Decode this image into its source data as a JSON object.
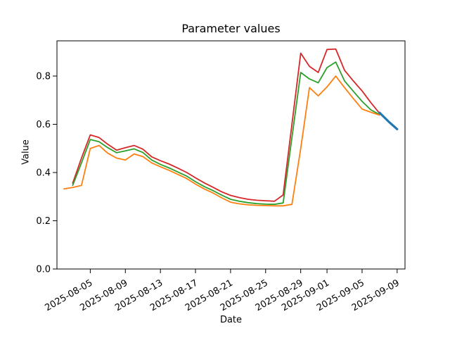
{
  "figure": {
    "background": "#ffffff",
    "text_color": "#000000"
  },
  "chart_data": {
    "type": "line",
    "title": "Parameter values",
    "xlabel": "Date",
    "ylabel": "Value",
    "grid": false,
    "legend": "none",
    "ylim": [
      0,
      0.946
    ],
    "y_ticks": [
      0.0,
      0.2,
      0.4,
      0.6,
      0.8
    ],
    "x_tick_rotation_deg": 30,
    "x_tick_labels": [
      "2025-08-05",
      "2025-08-09",
      "2025-08-13",
      "2025-08-17",
      "2025-08-21",
      "2025-08-25",
      "2025-08-29",
      "2025-09-01",
      "2025-09-05",
      "2025-09-09"
    ],
    "x": [
      "2025-08-02",
      "2025-08-03",
      "2025-08-04",
      "2025-08-05",
      "2025-08-06",
      "2025-08-07",
      "2025-08-08",
      "2025-08-09",
      "2025-08-10",
      "2025-08-11",
      "2025-08-12",
      "2025-08-13",
      "2025-08-14",
      "2025-08-15",
      "2025-08-16",
      "2025-08-17",
      "2025-08-18",
      "2025-08-19",
      "2025-08-20",
      "2025-08-21",
      "2025-08-22",
      "2025-08-23",
      "2025-08-24",
      "2025-08-25",
      "2025-08-26",
      "2025-08-27",
      "2025-08-28",
      "2025-08-29",
      "2025-08-30",
      "2025-08-31",
      "2025-09-01",
      "2025-09-02",
      "2025-09-03",
      "2025-09-04",
      "2025-09-05",
      "2025-09-06",
      "2025-09-07",
      "2025-09-08",
      "2025-09-09"
    ],
    "series": [
      {
        "name": "red",
        "color": "#d62728",
        "linewidth": 1.8,
        "values": [
          null,
          0.356,
          0.46,
          0.556,
          0.545,
          0.517,
          0.493,
          0.503,
          0.512,
          0.497,
          0.465,
          0.449,
          0.435,
          0.418,
          0.4,
          0.378,
          0.357,
          0.339,
          0.32,
          0.305,
          0.296,
          0.289,
          0.285,
          0.283,
          0.281,
          0.307,
          0.6,
          0.895,
          0.84,
          0.815,
          0.91,
          0.912,
          0.824,
          0.78,
          0.738,
          0.69,
          0.645,
          null,
          null
        ]
      },
      {
        "name": "green",
        "color": "#2ca02c",
        "linewidth": 1.8,
        "values": [
          null,
          0.347,
          0.44,
          0.537,
          0.528,
          0.503,
          0.482,
          0.49,
          0.498,
          0.483,
          0.452,
          0.434,
          0.419,
          0.402,
          0.385,
          0.362,
          0.342,
          0.325,
          0.306,
          0.289,
          0.281,
          0.275,
          0.271,
          0.269,
          0.268,
          0.274,
          0.545,
          0.815,
          0.788,
          0.772,
          0.835,
          0.858,
          0.78,
          0.737,
          0.695,
          0.66,
          0.64,
          null,
          null
        ]
      },
      {
        "name": "orange",
        "color": "#ff7f0e",
        "linewidth": 1.8,
        "values": [
          0.332,
          0.338,
          0.347,
          0.5,
          0.512,
          0.48,
          0.46,
          0.452,
          0.477,
          0.466,
          0.44,
          0.424,
          0.409,
          0.392,
          0.375,
          0.352,
          0.332,
          0.315,
          0.295,
          0.277,
          0.27,
          0.266,
          0.264,
          0.263,
          0.262,
          0.262,
          0.268,
          0.5,
          0.752,
          0.718,
          0.755,
          0.8,
          0.752,
          0.707,
          0.663,
          0.65,
          0.638,
          null,
          null
        ]
      },
      {
        "name": "blue",
        "color": "#1f77b4",
        "linewidth": 3.2,
        "values": [
          null,
          null,
          null,
          null,
          null,
          null,
          null,
          null,
          null,
          null,
          null,
          null,
          null,
          null,
          null,
          null,
          null,
          null,
          null,
          null,
          null,
          null,
          null,
          null,
          null,
          null,
          null,
          null,
          null,
          null,
          null,
          null,
          null,
          null,
          null,
          null,
          0.648,
          0.612,
          0.58
        ]
      }
    ]
  }
}
